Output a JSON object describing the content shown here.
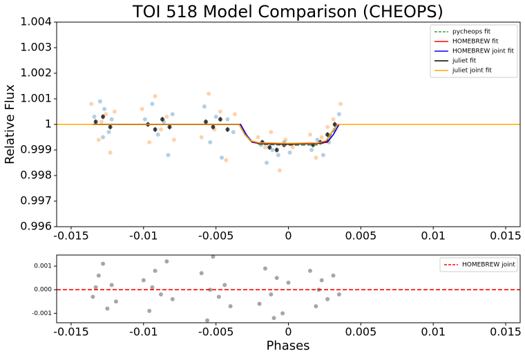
{
  "chart_data": [
    {
      "type": "scatter",
      "title": "TOI 518 Model Comparison (CHEOPS)",
      "y_label": "Relative Flux",
      "xlim": [
        -0.016,
        0.016
      ],
      "ylim": [
        0.996,
        1.004
      ],
      "xticks": [
        -0.015,
        -0.01,
        -0.005,
        0,
        0.005,
        0.01,
        0.015
      ],
      "yticks": [
        0.996,
        0.997,
        0.998,
        0.999,
        1,
        1.001,
        1.002,
        1.003,
        1.004
      ],
      "legend": "upper right",
      "series": [
        {
          "kind": "points",
          "color": "#1f77b4",
          "opacity": 0.35,
          "x": [
            -0.0134,
            -0.013,
            -0.0127,
            -0.0124,
            -0.0122,
            -0.0128,
            -0.0099,
            -0.0094,
            -0.009,
            -0.0086,
            -0.0083,
            -0.008,
            -0.0058,
            -0.0054,
            -0.005,
            -0.0046,
            -0.0042,
            -0.0038,
            -0.0019,
            -0.0015,
            -0.0011,
            -0.0007,
            -0.0003,
            0.0001,
            0.0016,
            0.002,
            0.0024,
            0.0028,
            0.0032,
            0.0035
          ],
          "values": [
            1.0003,
            1.0009,
            1.0006,
            0.9997,
            1.0002,
            0.9995,
            1.0002,
            1.0008,
            0.9996,
            1.0001,
            0.9988,
            1.0004,
            1.0007,
            0.9993,
            1.0003,
            0.9987,
            1.0002,
            0.9997,
            0.9992,
            0.9985,
            0.999,
            0.9988,
            0.9993,
            0.9989,
            0.999,
            0.9994,
            0.9988,
            0.9993,
            0.9998,
            1.0004
          ]
        },
        {
          "kind": "points",
          "color": "#ff7f0e",
          "opacity": 0.35,
          "x": [
            -0.0136,
            -0.0131,
            -0.0126,
            -0.0123,
            -0.012,
            -0.0129,
            -0.0101,
            -0.0096,
            -0.0092,
            -0.0088,
            -0.0084,
            -0.0079,
            -0.006,
            -0.0055,
            -0.0051,
            -0.0047,
            -0.0043,
            -0.0037,
            -0.0021,
            -0.0016,
            -0.0012,
            -0.0006,
            -0.0002,
            0.0003,
            0.0015,
            0.0019,
            0.0023,
            0.0027,
            0.0031,
            0.0036
          ],
          "values": [
            1.0008,
            0.9994,
            1.0004,
            0.9989,
            1.0005,
            1.0001,
            1.0006,
            0.9993,
            1.0011,
            0.9998,
            1.0003,
            0.9994,
            0.9995,
            1.0012,
            0.9998,
            1.0005,
            0.9986,
            1.0004,
            0.9995,
            0.9991,
            0.9997,
            0.9982,
            0.9994,
            0.9991,
            0.9996,
            0.9987,
            0.9995,
            0.9999,
            1.0002,
            1.0008
          ]
        },
        {
          "kind": "points",
          "color": "#000000",
          "opacity": 0.7,
          "x": [
            -0.0133,
            -0.0128,
            -0.0123,
            -0.0097,
            -0.0092,
            -0.0087,
            -0.0082,
            -0.0057,
            -0.0052,
            -0.0047,
            -0.0042,
            -0.0018,
            -0.0013,
            -0.0008,
            -0.0003,
            0.0017,
            0.0022,
            0.0027,
            0.0032
          ],
          "values": [
            1.0001,
            1.0003,
            0.9999,
            1.0,
            0.9998,
            1.0002,
            0.9999,
            1.0001,
            0.9999,
            1.0002,
            0.9998,
            0.9993,
            0.9991,
            0.999,
            0.9992,
            0.9992,
            0.9993,
            0.9996,
            1.0
          ],
          "errors": [
            0.0001,
            0.0001,
            0.0001,
            0.0001,
            0.0001,
            0.0001,
            0.0001,
            0.0001,
            0.0001,
            0.0001,
            0.0001,
            0.0001,
            0.0001,
            0.0001,
            0.0001,
            0.0001,
            0.0001,
            0.0001,
            0.0001
          ]
        },
        {
          "kind": "line",
          "name": "pycheops fit",
          "color": "#2ca02c",
          "dash": true,
          "x": [
            -0.0135,
            -0.0034,
            -0.003,
            -0.0026,
            -0.002,
            0,
            0.002,
            0.0026,
            0.003,
            0.0034
          ],
          "values": [
            1,
            1,
            0.99965,
            0.99935,
            0.99922,
            0.99918,
            0.9992,
            0.9993,
            0.99965,
            1
          ]
        },
        {
          "kind": "line",
          "name": "HOMEBREW fit",
          "color": "#ff0000",
          "x": [
            -0.0135,
            -0.0033,
            -0.0029,
            -0.0025,
            -0.002,
            0,
            0.002,
            0.0027,
            0.0031,
            0.0035
          ],
          "values": [
            1,
            1,
            0.9996,
            0.9993,
            0.99925,
            0.99922,
            0.99925,
            0.9993,
            0.9996,
            1
          ]
        },
        {
          "kind": "line",
          "name": "HOMEBREW joint fit",
          "color": "#0000ff",
          "x": [
            -0.0135,
            -0.0033,
            -0.0029,
            -0.0025,
            -0.002,
            0,
            0.002,
            0.0027,
            0.0031,
            0.0035
          ],
          "values": [
            1,
            1,
            0.99958,
            0.99932,
            0.99926,
            0.99924,
            0.99926,
            0.99933,
            0.9996,
            1
          ]
        },
        {
          "kind": "line",
          "name": "juliet fit",
          "color": "#000000",
          "x": [
            -0.0135,
            -0.0034,
            -0.003,
            -0.0026,
            -0.002,
            0,
            0.002,
            0.0026,
            0.003,
            0.0034
          ],
          "values": [
            1,
            1,
            0.9996,
            0.99935,
            0.99928,
            0.99925,
            0.99928,
            0.99935,
            0.9997,
            1
          ]
        },
        {
          "kind": "line",
          "name": "juliet joint fit",
          "color": "#ffa500",
          "x": [
            -0.016,
            -0.0034,
            -0.003,
            -0.0026,
            -0.002,
            0,
            0.002,
            0.0026,
            0.003,
            0.0034,
            0.016
          ],
          "values": [
            1,
            1,
            0.9996,
            0.99936,
            0.99928,
            0.99926,
            0.99928,
            0.99936,
            0.9997,
            1,
            1
          ]
        }
      ]
    },
    {
      "type": "scatter",
      "x_label": "Phases",
      "xlim": [
        -0.016,
        0.016
      ],
      "ylim": [
        -0.0014,
        0.00147
      ],
      "xticks": [
        -0.015,
        -0.01,
        -0.005,
        0,
        0.005,
        0.01,
        0.015
      ],
      "yticks": [
        -0.001,
        {
          "value": 0,
          "label": "0.000"
        },
        0.001
      ],
      "legend": "upper right",
      "series": [
        {
          "kind": "points",
          "color": "#000000",
          "opacity": 0.35,
          "x": [
            -0.0135,
            -0.0131,
            -0.0128,
            -0.0125,
            -0.0122,
            -0.0119,
            -0.0133,
            -0.01,
            -0.0096,
            -0.0092,
            -0.0088,
            -0.0084,
            -0.008,
            -0.0094,
            -0.006,
            -0.0056,
            -0.0052,
            -0.0048,
            -0.0044,
            -0.004,
            -0.0054,
            -0.002,
            -0.0016,
            -0.0012,
            -0.0008,
            -0.0004,
            0,
            -0.001,
            0.0015,
            0.0019,
            0.0023,
            0.0027,
            0.0031,
            0.0035,
            0.0021
          ],
          "values": [
            -0.0003,
            0.0006,
            0.0011,
            -0.0008,
            0.0002,
            -0.0005,
            0.0001,
            0.0004,
            -0.0009,
            0.0008,
            -0.0002,
            0.0012,
            -0.0004,
            0.0001,
            0.0007,
            -0.0013,
            0.0014,
            -0.0003,
            0.0002,
            -0.0007,
            0.0,
            -0.0006,
            0.0009,
            -0.0002,
            0.0005,
            -0.001,
            0.0003,
            -0.0012,
            0.0008,
            -0.0007,
            0.0004,
            -0.0004,
            0.0006,
            -0.0002,
            0.0
          ]
        },
        {
          "kind": "line",
          "name": "HOMEBREW joint",
          "color": "#ff0000",
          "dash": true,
          "x": [
            -0.016,
            0.016
          ],
          "values": [
            0,
            0
          ]
        }
      ]
    }
  ]
}
